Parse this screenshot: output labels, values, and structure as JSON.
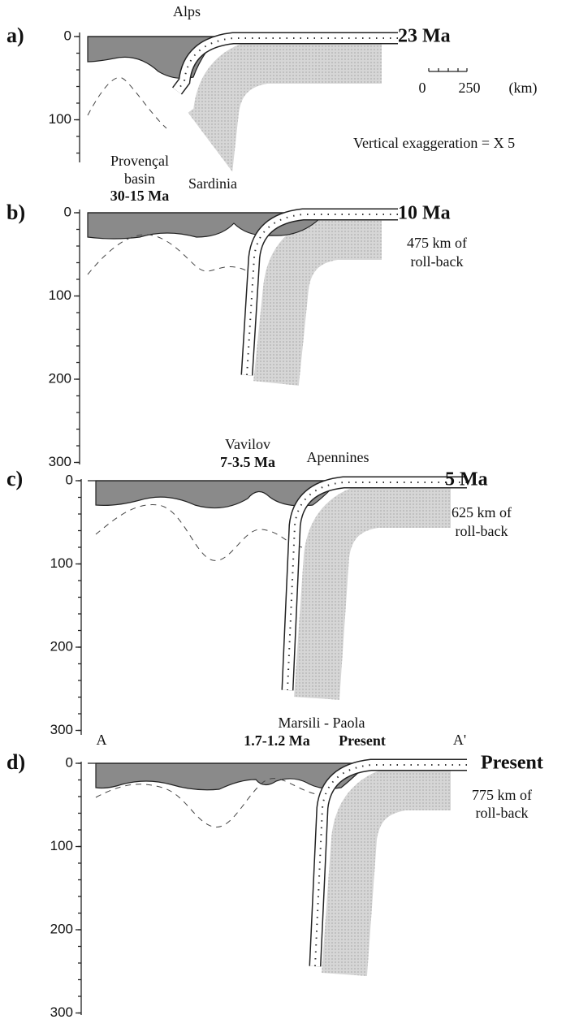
{
  "figure": {
    "scale": {
      "zero": "0",
      "max": "250",
      "unit": "(km)"
    },
    "exaggeration": "Vertical exaggeration = X 5",
    "panels": [
      {
        "label": "a)",
        "age": "23 Ma",
        "axis_ticks": [
          "0",
          "100"
        ],
        "places": [
          "Alps"
        ]
      },
      {
        "label": "b)",
        "age": "10 Ma",
        "rollback": [
          "475 km of",
          "roll-back"
        ],
        "axis_ticks": [
          "0",
          "100",
          "200",
          "300"
        ],
        "places": [
          "Provençal",
          "basin",
          "30-15 Ma",
          "Sardinia"
        ]
      },
      {
        "label": "c)",
        "age": "5 Ma",
        "rollback": [
          "625 km of",
          "roll-back"
        ],
        "axis_ticks": [
          "0",
          "100",
          "200",
          "300"
        ],
        "places": [
          "Vavilov",
          "7-3.5 Ma",
          "Apennines"
        ]
      },
      {
        "label": "d)",
        "age": "Present",
        "rollback": [
          "775 km of",
          "roll-back"
        ],
        "axis_ticks": [
          "0",
          "100",
          "200",
          "300"
        ],
        "places": [
          "A",
          "A'",
          "Marsili - Paola",
          "1.7-1.2 Ma",
          "Present"
        ]
      }
    ]
  }
}
